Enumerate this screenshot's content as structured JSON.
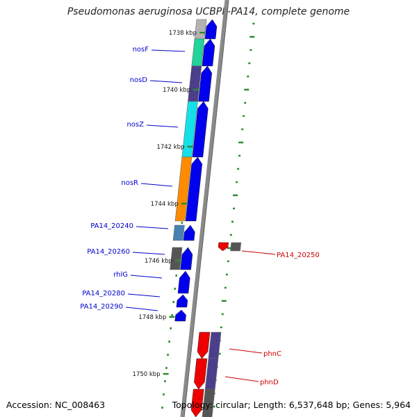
{
  "title": "Pseudomonas aeruginosa UCBPP-PA14, complete genome",
  "footer": {
    "accession": "Accession: NC_008463",
    "topology": "Topology: circular; Length: 6,537,648 bp; Genes: 5,964"
  },
  "colors": {
    "backbone": "#8a8a8a",
    "plus_strand_gene": "#0000ee",
    "minus_strand_gene": "#ee0000",
    "plus_label": "#0000cc",
    "minus_label": "#cc0000",
    "tick": "#2e8b2e",
    "cog_gray": "#b3b3b3",
    "cog_green": "#20d49a",
    "cog_purple": "#4b3f8c",
    "cog_cyan": "#15e0e8",
    "cog_orange": "#ff8c00",
    "cog_steelblue": "#4682b4",
    "cog_darkgray": "#555555"
  },
  "kbp_ticks": [
    "1738 kbp",
    "1740 kbp",
    "1742 kbp",
    "1744 kbp",
    "1746 kbp",
    "1748 kbp",
    "1750 kbp"
  ],
  "plus_genes": [
    {
      "label": "",
      "cog": "cog_gray"
    },
    {
      "label": "nosF",
      "cog": "cog_green"
    },
    {
      "label": "nosD",
      "cog": "cog_purple"
    },
    {
      "label": "nosZ",
      "cog": "cog_cyan"
    },
    {
      "label": "nosR",
      "cog": "cog_orange"
    },
    {
      "label": "PA14_20240",
      "cog": "cog_steelblue"
    },
    {
      "label": "PA14_20260",
      "cog": "cog_darkgray"
    },
    {
      "label": "rhlG",
      "cog": ""
    },
    {
      "label": "PA14_20280",
      "cog": ""
    },
    {
      "label": "PA14_20290",
      "cog": ""
    }
  ],
  "minus_genes": [
    {
      "label": "PA14_20250",
      "cog": "cog_darkgray"
    },
    {
      "label": "phnC",
      "cog": "cog_purple"
    },
    {
      "label": "phnD",
      "cog": "cog_purple"
    },
    {
      "label": "",
      "cog": "cog_darkgray"
    }
  ]
}
